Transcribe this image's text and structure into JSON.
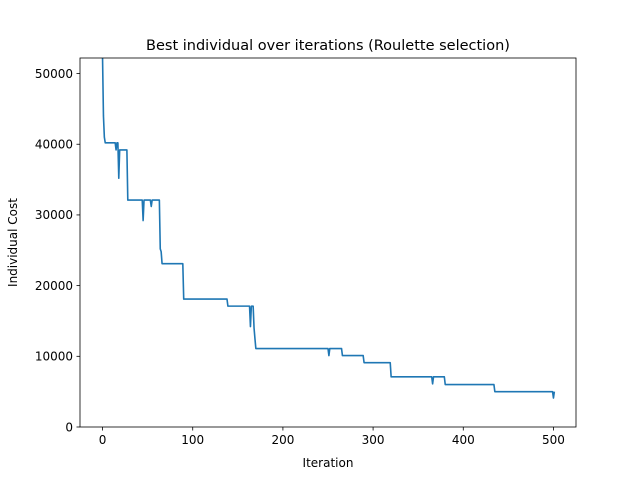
{
  "chart_data": {
    "type": "line",
    "title": "Best individual over iterations (Roulette selection)",
    "xlabel": "Iteration",
    "ylabel": "Individual Cost",
    "xlim": [
      -25,
      525
    ],
    "ylim": [
      0,
      52200
    ],
    "xticks": [
      0,
      100,
      200,
      300,
      400,
      500
    ],
    "yticks": [
      0,
      10000,
      20000,
      30000,
      40000,
      50000
    ],
    "grid": false,
    "line_color": "#1f77b4",
    "series": [
      {
        "x": [
          0,
          1,
          2,
          3,
          14,
          15,
          16,
          17,
          18,
          19,
          20,
          21,
          27,
          28,
          29,
          44,
          45,
          46,
          47,
          53,
          54,
          55,
          62,
          63,
          64,
          65,
          66,
          67,
          89,
          90,
          91,
          138,
          139,
          140,
          163,
          164,
          165,
          166,
          167,
          168,
          169,
          170,
          171,
          250,
          251,
          252,
          265,
          266,
          267,
          289,
          290,
          291,
          319,
          320,
          321,
          365,
          366,
          367,
          379,
          380,
          381,
          434,
          435,
          436,
          499,
          500,
          501
        ],
        "y": [
          52200,
          44000,
          41000,
          40200,
          40200,
          39200,
          40200,
          40200,
          35200,
          39200,
          39200,
          39200,
          39200,
          32100,
          32100,
          32100,
          29200,
          32100,
          32100,
          32100,
          31200,
          32100,
          32100,
          32100,
          25200,
          24800,
          23100,
          23100,
          23100,
          18100,
          18100,
          18100,
          17100,
          17100,
          17100,
          14200,
          17100,
          17100,
          17100,
          14000,
          12500,
          11100,
          11100,
          11100,
          10100,
          11100,
          11100,
          10100,
          10100,
          10100,
          9100,
          9100,
          9100,
          7100,
          7100,
          7100,
          6100,
          7100,
          7100,
          6000,
          6000,
          6000,
          5000,
          5000,
          5000,
          4100,
          5000
        ]
      }
    ]
  }
}
